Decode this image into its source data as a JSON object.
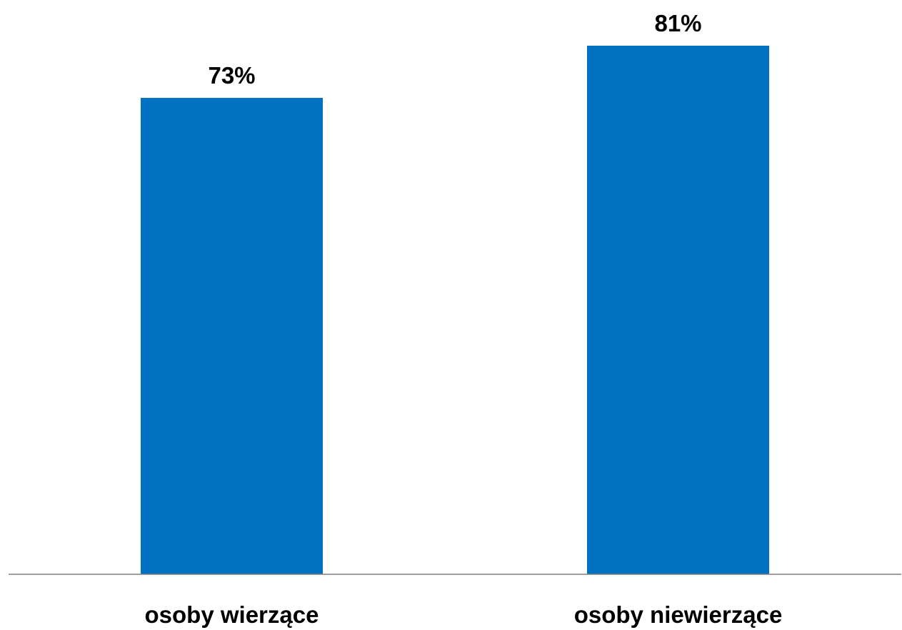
{
  "chart_data": {
    "type": "bar",
    "categories": [
      "osoby wierzące",
      "osoby niewierzące"
    ],
    "values": [
      73,
      81
    ],
    "value_labels": [
      "73%",
      "81%"
    ],
    "ylim": [
      0,
      88
    ],
    "grid": false,
    "legend": "none",
    "bar_color": "#0070C0",
    "axis_color": "#808080"
  }
}
